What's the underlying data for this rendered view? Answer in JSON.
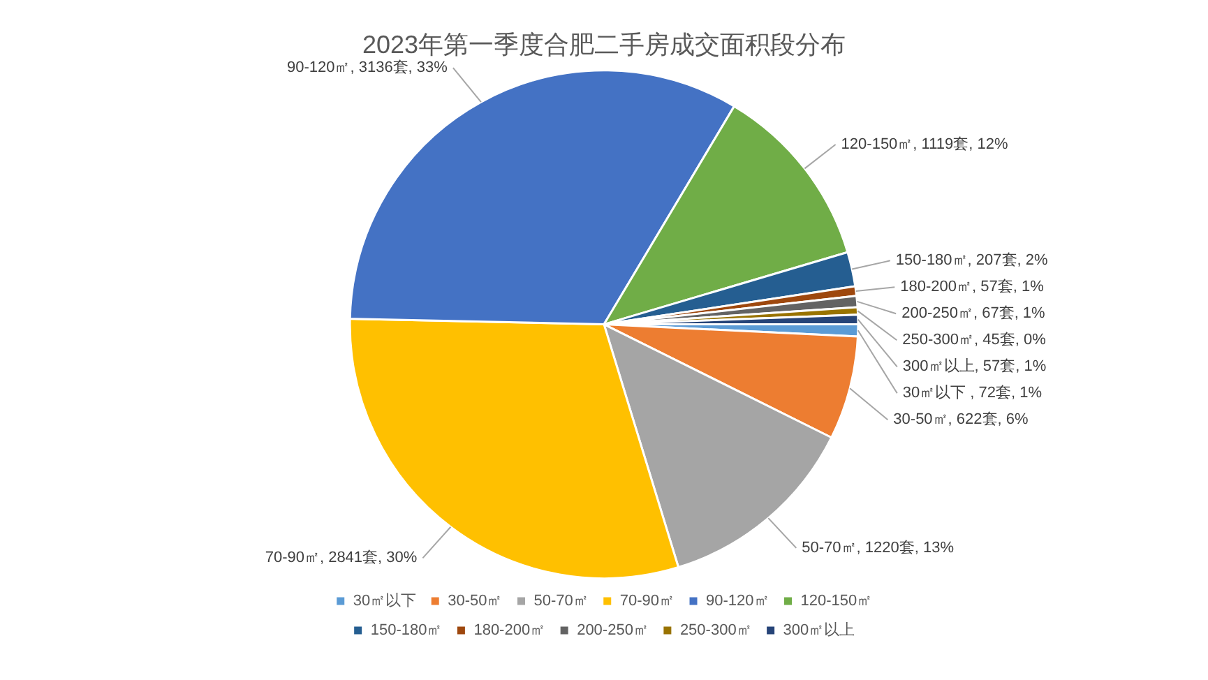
{
  "chart_data": {
    "type": "pie",
    "title": "2023年第一季度合肥二手房成交面积段分布",
    "categories": [
      "30㎡以下",
      "30-50㎡",
      "50-70㎡",
      "70-90㎡",
      "90-120㎡",
      "120-150㎡",
      "150-180㎡",
      "180-200㎡",
      "200-250㎡",
      "250-300㎡",
      "300㎡以上"
    ],
    "values": [
      72,
      622,
      1220,
      2841,
      3136,
      1119,
      207,
      57,
      67,
      45,
      57
    ],
    "colors": [
      "#5b9bd5",
      "#ed7d31",
      "#a5a5a5",
      "#ffc000",
      "#4472c4",
      "#70ad47",
      "#255e91",
      "#9e480e",
      "#636363",
      "#997300",
      "#264478"
    ],
    "value_labels": [
      "30㎡以下 , 72套, 1%",
      "30-50㎡, 622套, 6%",
      "50-70㎡, 1220套, 13%",
      "70-90㎡, 2841套, 30%",
      "90-120㎡, 3136套, 33%",
      "120-150㎡, 1119套, 12%",
      "150-180㎡, 207套, 2%",
      "180-200㎡, 57套, 1%",
      "200-250㎡, 67套, 1%",
      "250-300㎡, 45套, 0%",
      "300㎡以上, 57套, 1%"
    ],
    "legend": "bottom"
  }
}
